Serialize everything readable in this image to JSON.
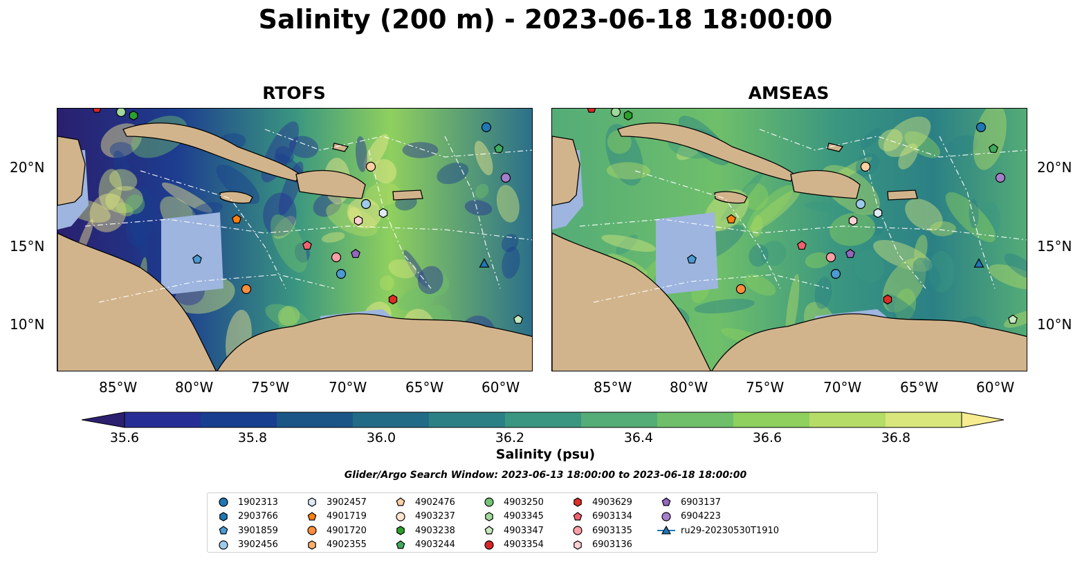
{
  "title": "Salinity (200 m) - 2023-06-18 18:00:00",
  "panels": [
    {
      "title": "RTOFS"
    },
    {
      "title": "AMSEAS"
    }
  ],
  "axes": {
    "lon_labels": [
      "85°W",
      "80°W",
      "75°W",
      "70°W",
      "65°W",
      "60°W"
    ],
    "lat_labels": [
      "20°N",
      "15°N",
      "10°N"
    ]
  },
  "colorbar": {
    "label": "Salinity (psu)",
    "ticks": [
      "35.6",
      "35.8",
      "36.0",
      "36.2",
      "36.4",
      "36.6",
      "36.8"
    ],
    "colors": [
      "#2b1f6f",
      "#262e95",
      "#183e8f",
      "#1b5587",
      "#226b86",
      "#2b8085",
      "#3a9680",
      "#54ac77",
      "#6fbf6a",
      "#8fd05e",
      "#b5dc66",
      "#d8e67c",
      "#f7ec8f"
    ]
  },
  "search_window": "Glider/Argo Search Window: 2023-06-13 18:00:00 to 2023-06-18 18:00:00",
  "legend": [
    {
      "label": "1902313",
      "marker": "circle",
      "color": "#1f77b4"
    },
    {
      "label": "2903766",
      "marker": "hexagon",
      "color": "#1f77b4"
    },
    {
      "label": "3901859",
      "marker": "pentagon",
      "color": "#4b9ad1"
    },
    {
      "label": "3902456",
      "marker": "circle",
      "color": "#9ecae9"
    },
    {
      "label": "3902457",
      "marker": "hexagon",
      "color": "#deebf7"
    },
    {
      "label": "4901719",
      "marker": "pentagon",
      "color": "#ff7f0e"
    },
    {
      "label": "4901720",
      "marker": "circle",
      "color": "#fd8d3c"
    },
    {
      "label": "4902355",
      "marker": "hexagon",
      "color": "#fdae6b"
    },
    {
      "label": "4902476",
      "marker": "pentagon",
      "color": "#fdd0a2"
    },
    {
      "label": "4903237",
      "marker": "circle",
      "color": "#fee6ce"
    },
    {
      "label": "4903238",
      "marker": "hexagon",
      "color": "#2ca02c"
    },
    {
      "label": "4903244",
      "marker": "pentagon",
      "color": "#41ab5d"
    },
    {
      "label": "4903250",
      "marker": "circle",
      "color": "#74c476"
    },
    {
      "label": "4903345",
      "marker": "hexagon",
      "color": "#a1d99b"
    },
    {
      "label": "4903347",
      "marker": "pentagon",
      "color": "#c7e9c0"
    },
    {
      "label": "4903354",
      "marker": "circle",
      "color": "#d62728"
    },
    {
      "label": "4903629",
      "marker": "hexagon",
      "color": "#de2d26"
    },
    {
      "label": "6903134",
      "marker": "pentagon",
      "color": "#f0626e"
    },
    {
      "label": "6903135",
      "marker": "circle",
      "color": "#fc9fa6"
    },
    {
      "label": "6903136",
      "marker": "hexagon",
      "color": "#fdd0d2"
    },
    {
      "label": "6903137",
      "marker": "pentagon",
      "color": "#9467bd"
    },
    {
      "label": "6904223",
      "marker": "circle",
      "color": "#a57fcc"
    },
    {
      "label": "ru29-20230530T1910",
      "marker": "triangle-line",
      "color": "#1f77b4"
    }
  ],
  "colors": {
    "land": "#d2b48c",
    "shelf": "#9db5df",
    "deep_ocean": "#2b1f6f"
  }
}
